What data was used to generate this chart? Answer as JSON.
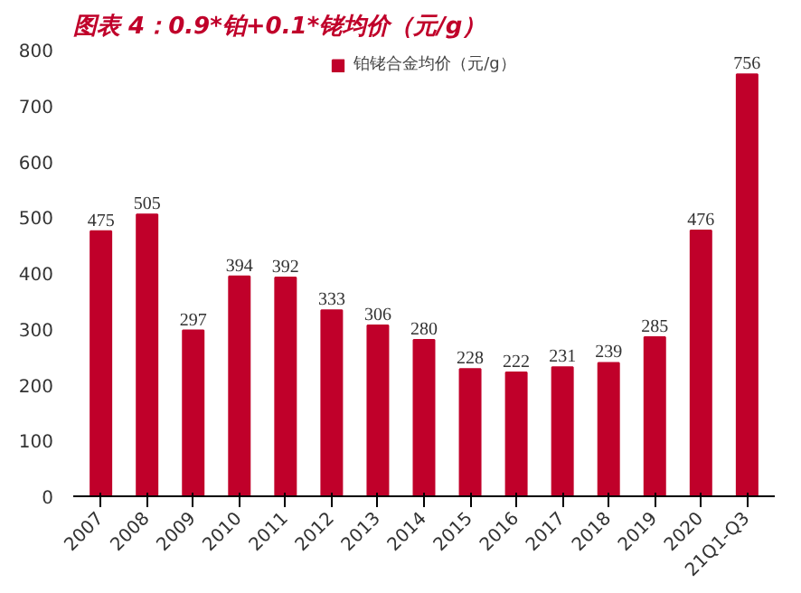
{
  "chart_data": {
    "type": "bar",
    "title": "图表 4：0.9*铂+0.1*铑均价（元/g）",
    "categories": [
      "2007",
      "2008",
      "2009",
      "2010",
      "2011",
      "2012",
      "2013",
      "2014",
      "2015",
      "2016",
      "2017",
      "2018",
      "2019",
      "2020",
      "21Q1-Q3"
    ],
    "series": [
      {
        "name": "铂铑合金均价（元/g）",
        "color": "#c0002a",
        "values": [
          475,
          505,
          297,
          394,
          392,
          333,
          306,
          280,
          228,
          222,
          231,
          239,
          285,
          476,
          756
        ]
      }
    ],
    "ylim": [
      0,
      800
    ],
    "yticks": [
      0,
      100,
      200,
      300,
      400,
      500,
      600,
      700,
      800
    ],
    "data_labels": true,
    "grid": false,
    "legend": "top"
  }
}
